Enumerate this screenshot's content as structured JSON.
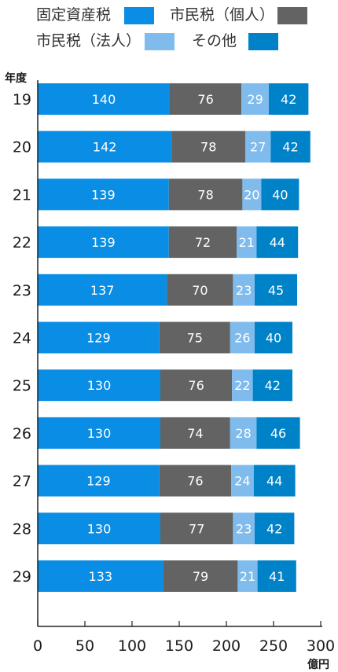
{
  "chart_data": {
    "type": "bar",
    "orientation": "horizontal",
    "stacked": true,
    "title": "",
    "xlabel": "億円",
    "ylabel": "年度",
    "xlim": [
      0,
      300
    ],
    "x_ticks": [
      0,
      50,
      100,
      150,
      200,
      250,
      300
    ],
    "grid": false,
    "legend_position": "top",
    "categories": [
      "19",
      "20",
      "21",
      "22",
      "23",
      "24",
      "25",
      "26",
      "27",
      "28",
      "29"
    ],
    "series": [
      {
        "name": "固定資産税",
        "color": "#0a8de4",
        "values": [
          140,
          142,
          139,
          139,
          137,
          129,
          130,
          130,
          129,
          130,
          133
        ]
      },
      {
        "name": "市民税（個人）",
        "color": "#636363",
        "values": [
          76,
          78,
          78,
          72,
          70,
          75,
          76,
          74,
          76,
          77,
          79
        ]
      },
      {
        "name": "市民税（法人）",
        "color": "#7fbbec",
        "values": [
          29,
          27,
          20,
          21,
          23,
          26,
          22,
          28,
          24,
          23,
          21
        ]
      },
      {
        "name": "その他",
        "color": "#0082c8",
        "values": [
          42,
          42,
          40,
          44,
          45,
          40,
          42,
          46,
          44,
          42,
          41
        ]
      }
    ]
  }
}
